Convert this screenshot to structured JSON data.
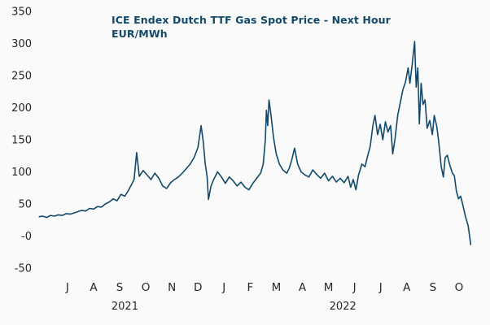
{
  "colors": {
    "line": "#12496b",
    "title": "#12496b",
    "axis_text": "#262626",
    "background": "#fafafa"
  },
  "chart_data": {
    "type": "line",
    "title": "ICE Endex Dutch TTF Gas Spot Price -  Next Hour",
    "subtitle": "EUR/MWh",
    "xlabel": "",
    "ylabel": "",
    "grid": false,
    "legend": "none",
    "x_unit": "fractional months since 2021-06-01 (0.5 = mid-June 2021)",
    "xlim": [
      0.35,
      17.5
    ],
    "ylim": [
      -50,
      350
    ],
    "y_ticks": [
      {
        "value": 350,
        "label": "350"
      },
      {
        "value": 300,
        "label": "300"
      },
      {
        "value": 250,
        "label": "250"
      },
      {
        "value": 200,
        "label": "200"
      },
      {
        "value": 150,
        "label": "150"
      },
      {
        "value": 100,
        "label": "100"
      },
      {
        "value": 50,
        "label": "50"
      },
      {
        "value": 0,
        "label": "-0"
      },
      {
        "value": -50,
        "label": "-50"
      }
    ],
    "x_ticks": [
      {
        "pos": 1.5,
        "label": "J"
      },
      {
        "pos": 2.5,
        "label": "A"
      },
      {
        "pos": 3.5,
        "label": "S"
      },
      {
        "pos": 4.5,
        "label": "O"
      },
      {
        "pos": 5.5,
        "label": "N"
      },
      {
        "pos": 6.5,
        "label": "D"
      },
      {
        "pos": 7.5,
        "label": "J"
      },
      {
        "pos": 8.5,
        "label": "F"
      },
      {
        "pos": 9.5,
        "label": "M"
      },
      {
        "pos": 10.5,
        "label": "A"
      },
      {
        "pos": 11.5,
        "label": "M"
      },
      {
        "pos": 12.5,
        "label": "J"
      },
      {
        "pos": 13.5,
        "label": "J"
      },
      {
        "pos": 14.5,
        "label": "A"
      },
      {
        "pos": 15.5,
        "label": "S"
      },
      {
        "pos": 16.5,
        "label": "O"
      }
    ],
    "year_labels": [
      {
        "pos": 3.7,
        "label": "2021"
      },
      {
        "pos": 12.05,
        "label": "2022"
      }
    ],
    "series": [
      {
        "name": "ICE Endex Dutch TTF Gas Spot Price Next Hour (EUR/MWh)",
        "points": [
          [
            0.4,
            30
          ],
          [
            0.55,
            31
          ],
          [
            0.7,
            29
          ],
          [
            0.85,
            32
          ],
          [
            1.0,
            31
          ],
          [
            1.15,
            33
          ],
          [
            1.3,
            32
          ],
          [
            1.45,
            35
          ],
          [
            1.6,
            34
          ],
          [
            1.75,
            36
          ],
          [
            1.9,
            38
          ],
          [
            2.05,
            40
          ],
          [
            2.2,
            39
          ],
          [
            2.35,
            43
          ],
          [
            2.5,
            42
          ],
          [
            2.65,
            46
          ],
          [
            2.8,
            45
          ],
          [
            2.95,
            50
          ],
          [
            3.1,
            53
          ],
          [
            3.25,
            58
          ],
          [
            3.4,
            55
          ],
          [
            3.55,
            65
          ],
          [
            3.7,
            62
          ],
          [
            3.85,
            72
          ],
          [
            3.95,
            80
          ],
          [
            4.05,
            88
          ],
          [
            4.15,
            130
          ],
          [
            4.25,
            93
          ],
          [
            4.4,
            102
          ],
          [
            4.55,
            95
          ],
          [
            4.7,
            88
          ],
          [
            4.85,
            98
          ],
          [
            5.0,
            90
          ],
          [
            5.15,
            78
          ],
          [
            5.3,
            74
          ],
          [
            5.45,
            83
          ],
          [
            5.6,
            88
          ],
          [
            5.75,
            92
          ],
          [
            5.9,
            98
          ],
          [
            6.05,
            105
          ],
          [
            6.2,
            112
          ],
          [
            6.35,
            122
          ],
          [
            6.5,
            138
          ],
          [
            6.62,
            172
          ],
          [
            6.7,
            148
          ],
          [
            6.78,
            112
          ],
          [
            6.85,
            92
          ],
          [
            6.9,
            57
          ],
          [
            7.0,
            78
          ],
          [
            7.1,
            88
          ],
          [
            7.25,
            100
          ],
          [
            7.4,
            92
          ],
          [
            7.55,
            82
          ],
          [
            7.7,
            92
          ],
          [
            7.85,
            86
          ],
          [
            8.0,
            78
          ],
          [
            8.15,
            84
          ],
          [
            8.3,
            76
          ],
          [
            8.45,
            72
          ],
          [
            8.6,
            82
          ],
          [
            8.75,
            90
          ],
          [
            8.9,
            98
          ],
          [
            9.0,
            112
          ],
          [
            9.08,
            150
          ],
          [
            9.12,
            196
          ],
          [
            9.17,
            172
          ],
          [
            9.22,
            212
          ],
          [
            9.3,
            188
          ],
          [
            9.4,
            152
          ],
          [
            9.5,
            128
          ],
          [
            9.62,
            112
          ],
          [
            9.75,
            103
          ],
          [
            9.9,
            98
          ],
          [
            10.0,
            106
          ],
          [
            10.1,
            120
          ],
          [
            10.2,
            137
          ],
          [
            10.32,
            112
          ],
          [
            10.45,
            100
          ],
          [
            10.6,
            95
          ],
          [
            10.75,
            92
          ],
          [
            10.9,
            103
          ],
          [
            11.05,
            96
          ],
          [
            11.2,
            90
          ],
          [
            11.35,
            98
          ],
          [
            11.5,
            86
          ],
          [
            11.65,
            93
          ],
          [
            11.8,
            84
          ],
          [
            11.95,
            90
          ],
          [
            12.1,
            83
          ],
          [
            12.25,
            93
          ],
          [
            12.35,
            76
          ],
          [
            12.45,
            88
          ],
          [
            12.55,
            72
          ],
          [
            12.65,
            95
          ],
          [
            12.78,
            112
          ],
          [
            12.9,
            108
          ],
          [
            13.0,
            125
          ],
          [
            13.1,
            140
          ],
          [
            13.2,
            172
          ],
          [
            13.28,
            188
          ],
          [
            13.38,
            158
          ],
          [
            13.48,
            174
          ],
          [
            13.58,
            150
          ],
          [
            13.68,
            178
          ],
          [
            13.78,
            162
          ],
          [
            13.88,
            172
          ],
          [
            13.96,
            128
          ],
          [
            14.05,
            152
          ],
          [
            14.15,
            188
          ],
          [
            14.25,
            208
          ],
          [
            14.35,
            228
          ],
          [
            14.45,
            240
          ],
          [
            14.55,
            262
          ],
          [
            14.62,
            238
          ],
          [
            14.7,
            265
          ],
          [
            14.8,
            303
          ],
          [
            14.86,
            232
          ],
          [
            14.92,
            262
          ],
          [
            14.98,
            175
          ],
          [
            15.05,
            238
          ],
          [
            15.12,
            205
          ],
          [
            15.2,
            212
          ],
          [
            15.28,
            168
          ],
          [
            15.38,
            180
          ],
          [
            15.48,
            158
          ],
          [
            15.55,
            188
          ],
          [
            15.65,
            170
          ],
          [
            15.72,
            148
          ],
          [
            15.82,
            108
          ],
          [
            15.9,
            92
          ],
          [
            15.97,
            122
          ],
          [
            16.05,
            126
          ],
          [
            16.15,
            110
          ],
          [
            16.25,
            98
          ],
          [
            16.32,
            94
          ],
          [
            16.4,
            70
          ],
          [
            16.48,
            58
          ],
          [
            16.56,
            62
          ],
          [
            16.65,
            48
          ],
          [
            16.75,
            30
          ],
          [
            16.85,
            16
          ],
          [
            16.95,
            -14
          ]
        ]
      }
    ]
  }
}
